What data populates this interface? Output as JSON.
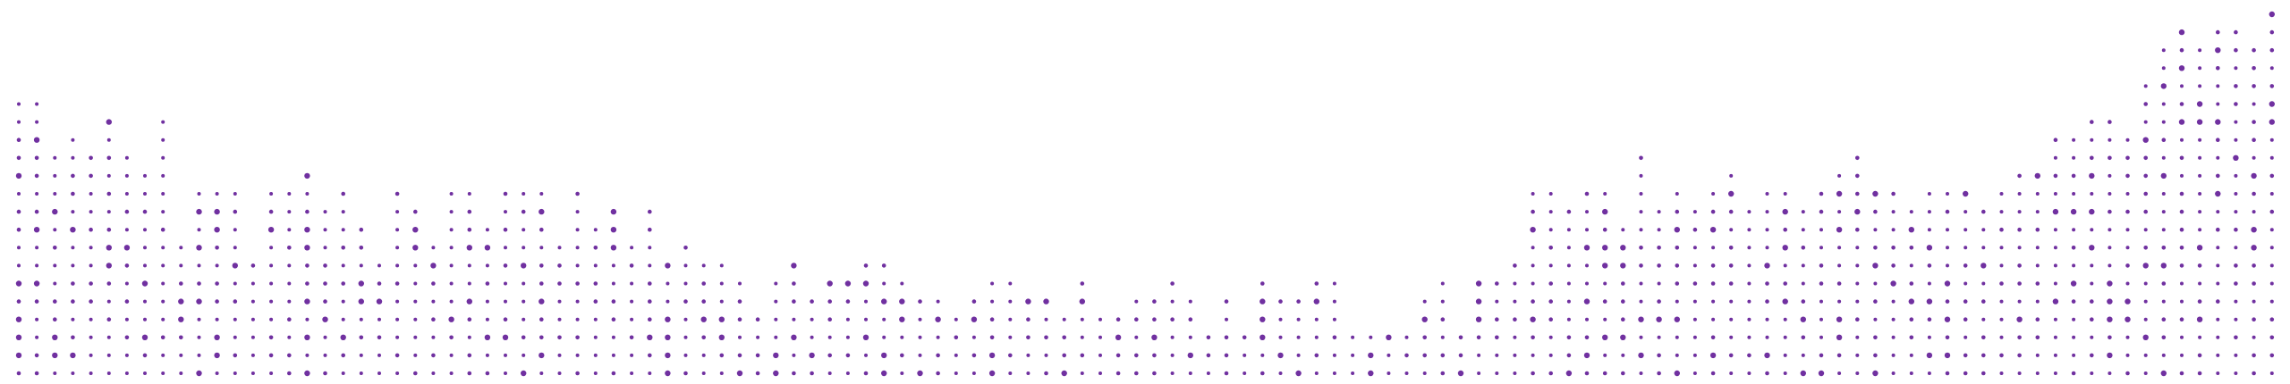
{
  "pattern": {
    "dot_color": "#7030a0",
    "background": "#ffffff",
    "rows": 21,
    "columns": 126,
    "column_dot_counts": [
      16,
      16,
      13,
      14,
      13,
      15,
      13,
      12,
      15,
      8,
      11,
      11,
      11,
      7,
      11,
      11,
      12,
      10,
      11,
      9,
      7,
      11,
      10,
      8,
      11,
      11,
      9,
      11,
      11,
      11,
      8,
      11,
      9,
      10,
      8,
      10,
      7,
      8,
      7,
      7,
      6,
      4,
      6,
      7,
      5,
      6,
      6,
      7,
      7,
      6,
      5,
      5,
      4,
      5,
      6,
      6,
      5,
      5,
      4,
      6,
      4,
      4,
      5,
      5,
      6,
      5,
      3,
      5,
      3,
      6,
      5,
      5,
      6,
      6,
      3,
      3,
      3,
      3,
      5,
      6,
      3,
      6,
      6,
      7,
      11,
      11,
      10,
      11,
      11,
      9,
      13,
      10,
      11,
      10,
      11,
      12,
      10,
      11,
      11,
      10,
      11,
      12,
      13,
      11,
      11,
      10,
      11,
      11,
      11,
      10,
      11,
      12,
      12,
      14,
      14,
      15,
      15,
      14,
      17,
      19,
      20,
      19,
      20,
      20,
      19,
      21
    ]
  }
}
